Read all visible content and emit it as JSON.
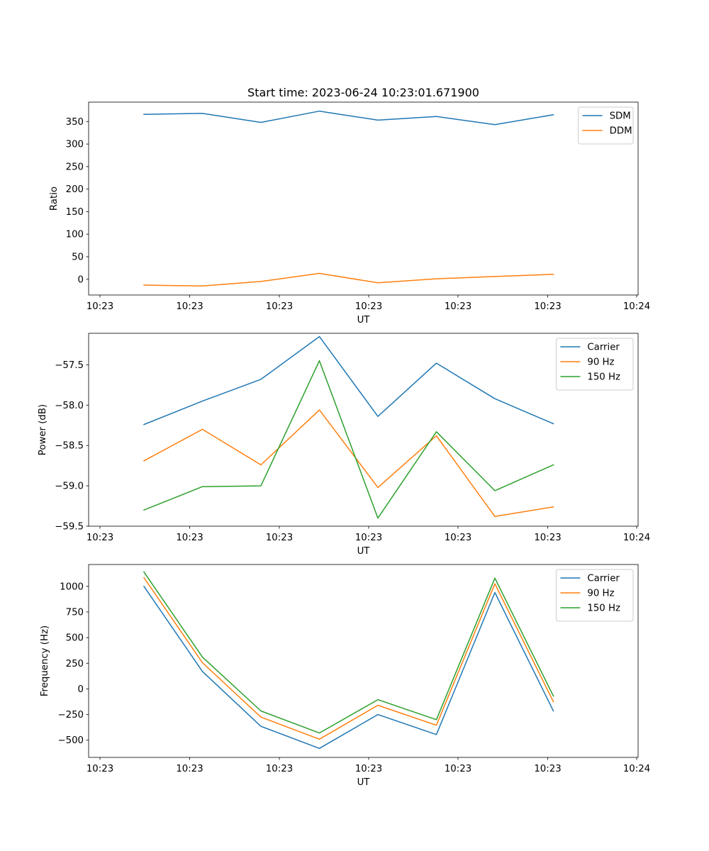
{
  "title": "Start time: 2023-06-24 10:23:01.671900",
  "x_tick_labels": [
    "10:23",
    "10:23",
    "10:23",
    "10:23",
    "10:23",
    "10:23",
    "10:24"
  ],
  "chart_data": [
    {
      "type": "line",
      "title": "Start time: 2023-06-24 10:23:01.671900",
      "xlabel": "UT",
      "ylabel": "Ratio",
      "ylim": [
        -35,
        393
      ],
      "yticks": [
        0,
        50,
        100,
        150,
        200,
        250,
        300,
        350
      ],
      "legend_position": "top-right",
      "series": [
        {
          "name": "SDM",
          "color": "#1f77b4",
          "values": [
            366,
            368,
            348,
            373,
            353,
            361,
            343,
            365
          ]
        },
        {
          "name": "DDM",
          "color": "#ff7f0e",
          "values": [
            -13,
            -15,
            -5,
            13,
            -8,
            1,
            6,
            11
          ]
        }
      ]
    },
    {
      "type": "line",
      "xlabel": "UT",
      "ylabel": "Power (dB)",
      "ylim": [
        -59.5,
        -57.11
      ],
      "yticks": [
        -59.5,
        -59.0,
        -58.5,
        -58.0,
        -57.5
      ],
      "ytick_labels": [
        "−59.5",
        "−59.0",
        "−58.5",
        "−58.0",
        "−57.5"
      ],
      "legend_position": "top-right",
      "series": [
        {
          "name": "Carrier",
          "color": "#1f77b4",
          "values": [
            -58.24,
            -57.95,
            -57.68,
            -57.15,
            -58.14,
            -57.48,
            -57.92,
            -58.23
          ]
        },
        {
          "name": "90 Hz",
          "color": "#ff7f0e",
          "values": [
            -58.69,
            -58.3,
            -58.74,
            -58.06,
            -59.02,
            -58.38,
            -59.38,
            -59.26
          ]
        },
        {
          "name": "150 Hz",
          "color": "#2ca02c",
          "values": [
            -59.3,
            -59.01,
            -59.0,
            -57.45,
            -59.4,
            -58.33,
            -59.06,
            -58.74
          ]
        }
      ]
    },
    {
      "type": "line",
      "xlabel": "UT",
      "ylabel": "Frequency (Hz)",
      "ylim": [
        -668,
        1213
      ],
      "yticks": [
        -500,
        -250,
        0,
        250,
        500,
        750,
        1000
      ],
      "ytick_labels": [
        "−500",
        "−250",
        "0",
        "250",
        "500",
        "750",
        "1000"
      ],
      "legend_position": "top-right",
      "series": [
        {
          "name": "Carrier",
          "color": "#1f77b4",
          "values": [
            1000,
            170,
            -365,
            -580,
            -250,
            -445,
            940,
            -215
          ]
        },
        {
          "name": "90 Hz",
          "color": "#ff7f0e",
          "values": [
            1085,
            255,
            -275,
            -490,
            -160,
            -355,
            1025,
            -125
          ]
        },
        {
          "name": "150 Hz",
          "color": "#2ca02c",
          "values": [
            1140,
            310,
            -215,
            -430,
            -105,
            -300,
            1080,
            -70
          ]
        }
      ]
    }
  ]
}
